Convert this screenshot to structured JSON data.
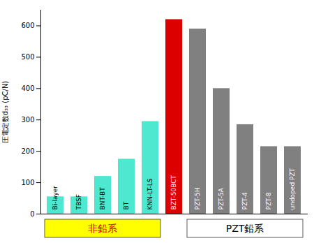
{
  "chart_data": {
    "type": "bar",
    "categories": [
      "Bi-layer",
      "TBSF",
      "BNT-BT",
      "BT",
      "KNN-LT-LS",
      "BZT-50BCT",
      "PZT-5H",
      "PZT-5A",
      "PZT-4",
      "PZT-8",
      "undoped PZT"
    ],
    "values": [
      55,
      55,
      120,
      175,
      295,
      620,
      590,
      400,
      285,
      215,
      215
    ],
    "colors": [
      "#4ee8d0",
      "#4ee8d0",
      "#4ee8d0",
      "#4ee8d0",
      "#4ee8d0",
      "#dd0000",
      "#808080",
      "#808080",
      "#808080",
      "#808080",
      "#808080"
    ],
    "ylabel": "圧電定数d₃₃ (pC/N)",
    "ylim": [
      0,
      650
    ],
    "yticks": [
      0,
      100,
      200,
      300,
      400,
      500,
      600
    ],
    "groups": [
      {
        "label": "非鉛系",
        "categories": [
          "Bi-layer",
          "TBSF",
          "BNT-BT",
          "BT",
          "KNN-LT-LS"
        ],
        "color": "#dd0000",
        "background": "#ffff00"
      },
      {
        "label": "PZT鉛系",
        "categories": [
          "PZT-5H",
          "PZT-5A",
          "PZT-4",
          "PZT-8",
          "undoped PZT"
        ],
        "color": "#000000",
        "background": "#ffffff"
      }
    ]
  }
}
